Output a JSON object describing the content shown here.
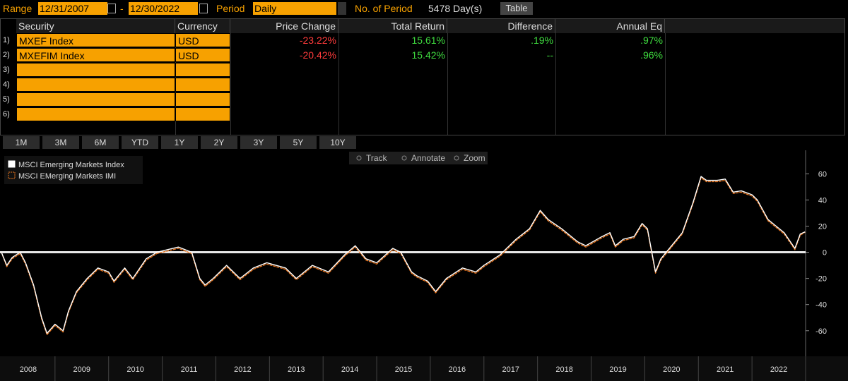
{
  "toolbar": {
    "range_label": "Range",
    "start_date": "12/31/2007",
    "separator": "-",
    "end_date": "12/30/2022",
    "period_label": "Period",
    "period": "Daily",
    "count_label": "No. of Period",
    "count": "5478 Day(s)",
    "table_button": "Table"
  },
  "table": {
    "columns": [
      "Security",
      "Currency",
      "Price Change",
      "Total Return",
      "Difference",
      "Annual Eq"
    ],
    "row_numbers": [
      "1)",
      "2)",
      "3)",
      "4)",
      "5)",
      "6)"
    ],
    "rows": [
      [
        "MXEF Index",
        "USD",
        "-23.22%",
        "15.61%",
        ".19%",
        ".97%"
      ],
      [
        "MXEFIM Index",
        "USD",
        "-20.42%",
        "15.42%",
        "--",
        ".96%"
      ]
    ]
  },
  "periods": [
    "1M",
    "3M",
    "6M",
    "YTD",
    "1Y",
    "2Y",
    "3Y",
    "5Y",
    "10Y"
  ],
  "chart_tools": [
    "Track",
    "Annotate",
    "Zoom"
  ],
  "chart_data": {
    "type": "line",
    "legend": "top-left",
    "zero_line": true,
    "x": [
      2008.0,
      2008.1,
      2008.2,
      2008.35,
      2008.45,
      2008.6,
      2008.75,
      2008.85,
      2009.0,
      2009.15,
      2009.25,
      2009.4,
      2009.6,
      2009.8,
      2010.0,
      2010.1,
      2010.3,
      2010.45,
      2010.7,
      2010.9,
      2011.1,
      2011.3,
      2011.55,
      2011.7,
      2011.8,
      2011.95,
      2012.2,
      2012.45,
      2012.7,
      2012.95,
      2013.3,
      2013.5,
      2013.8,
      2014.1,
      2014.4,
      2014.6,
      2014.8,
      2015.0,
      2015.3,
      2015.45,
      2015.65,
      2015.75,
      2015.95,
      2016.1,
      2016.3,
      2016.6,
      2016.85,
      2017.0,
      2017.3,
      2017.6,
      2017.85,
      2018.05,
      2018.2,
      2018.45,
      2018.75,
      2018.9,
      2019.2,
      2019.35,
      2019.45,
      2019.6,
      2019.8,
      2019.95,
      2020.05,
      2020.2,
      2020.3,
      2020.5,
      2020.7,
      2020.9,
      2021.05,
      2021.15,
      2021.35,
      2021.5,
      2021.65,
      2021.8,
      2022.0,
      2022.1,
      2022.3,
      2022.45,
      2022.6,
      2022.8,
      2022.9,
      2022.99
    ],
    "series": [
      {
        "name": "MSCI Emerging Markets Index",
        "color": "#ffffff",
        "values": [
          0,
          -10,
          -4,
          0,
          -8,
          -25,
          -50,
          -62,
          -55,
          -60,
          -45,
          -30,
          -20,
          -12,
          -15,
          -22,
          -12,
          -20,
          -5,
          0,
          2,
          4,
          0,
          -20,
          -25,
          -20,
          -10,
          -20,
          -12,
          -8,
          -12,
          -20,
          -10,
          -15,
          -2,
          5,
          -5,
          -8,
          3,
          0,
          -15,
          -18,
          -22,
          -30,
          -20,
          -12,
          -15,
          -10,
          -2,
          10,
          18,
          32,
          25,
          18,
          8,
          5,
          12,
          15,
          5,
          10,
          12,
          22,
          18,
          -15,
          -5,
          5,
          15,
          38,
          58,
          55,
          55,
          56,
          46,
          47,
          44,
          40,
          25,
          20,
          15,
          3,
          14,
          15.61
        ]
      },
      {
        "name": "MSCI EMerging Markets IMI",
        "color": "#e8731c",
        "dashed": true,
        "values": [
          0,
          -11,
          -5,
          -1,
          -9,
          -26,
          -51,
          -63,
          -56,
          -61,
          -46,
          -31,
          -21,
          -13,
          -16,
          -23,
          -13,
          -21,
          -6,
          -1,
          1,
          3,
          -1,
          -21,
          -26,
          -21,
          -11,
          -21,
          -13,
          -9,
          -13,
          -21,
          -11,
          -16,
          -3,
          4,
          -6,
          -9,
          2,
          -1,
          -16,
          -19,
          -23,
          -31,
          -21,
          -13,
          -16,
          -11,
          -3,
          9,
          17,
          31,
          24,
          17,
          7,
          4,
          11,
          14,
          4,
          9,
          11,
          21,
          17,
          -16,
          -6,
          4,
          14,
          37,
          57,
          54,
          54,
          55,
          45,
          46,
          43,
          39,
          24,
          19,
          14,
          2,
          13,
          15.42
        ]
      }
    ],
    "xlim": [
      2008,
      2023
    ],
    "xticks": [
      {
        "value": 2008.5,
        "label": "2008"
      },
      {
        "value": 2009.5,
        "label": "2009"
      },
      {
        "value": 2010.5,
        "label": "2010"
      },
      {
        "value": 2011.5,
        "label": "2011"
      },
      {
        "value": 2012.5,
        "label": "2012"
      },
      {
        "value": 2013.5,
        "label": "2013"
      },
      {
        "value": 2014.5,
        "label": "2014"
      },
      {
        "value": 2015.5,
        "label": "2015"
      },
      {
        "value": 2016.5,
        "label": "2016"
      },
      {
        "value": 2017.5,
        "label": "2017"
      },
      {
        "value": 2018.5,
        "label": "2018"
      },
      {
        "value": 2019.5,
        "label": "2019"
      },
      {
        "value": 2020.5,
        "label": "2020"
      },
      {
        "value": 2021.5,
        "label": "2021"
      },
      {
        "value": 2022.5,
        "label": "2022"
      }
    ],
    "ylim": [
      -72,
      78
    ],
    "yticks": [
      60,
      40,
      20,
      0,
      -20,
      -40,
      -60
    ]
  }
}
